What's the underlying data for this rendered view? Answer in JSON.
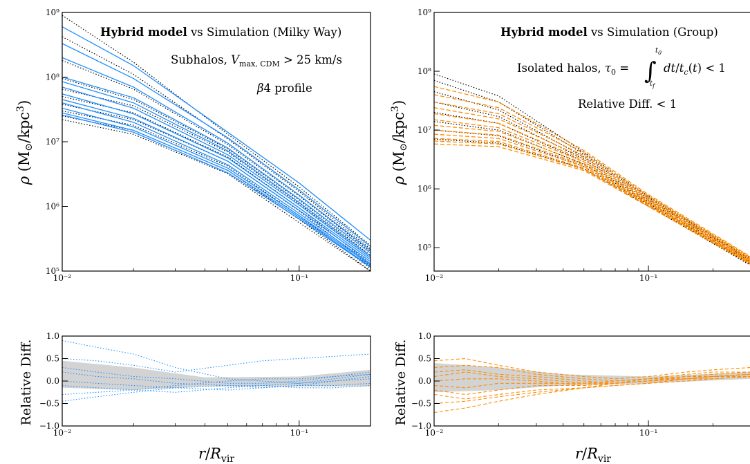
{
  "figure": {
    "xlabel": "r/R_vir",
    "main_ylabel": "ρ (M⊙/kpc³)",
    "diff_ylabel": "Relative Diff."
  },
  "colors": {
    "model_mw": "#1f8fff",
    "model_group": "#ff8c00",
    "simulation": "#000000",
    "band": "#d3d3d3"
  },
  "chart_data": [
    {
      "panel": "left-main",
      "type": "line",
      "xscale": "log",
      "yscale": "log",
      "xlim": [
        0.01,
        0.2
      ],
      "ylim": [
        100000,
        1000000000
      ],
      "xticks": [
        {
          "v": 0.01,
          "label": "10⁻²"
        },
        {
          "v": 0.1,
          "label": "10⁻¹"
        }
      ],
      "yticks": [
        {
          "v": 100000,
          "label": "10⁵"
        },
        {
          "v": 1000000,
          "label": "10⁶"
        },
        {
          "v": 10000000,
          "label": "10⁷"
        },
        {
          "v": 100000000,
          "label": "10⁸"
        },
        {
          "v": 1000000000,
          "label": "10⁹"
        }
      ],
      "title_bold": "Hybrid model",
      "title_rest": " vs Simulation (Milky Way)",
      "annotations": [
        "Subhalos,  V_max,CDM > 25 km/s",
        "β4 profile"
      ],
      "model_style": "solid",
      "x": [
        0.01,
        0.02,
        0.05,
        0.1,
        0.2
      ],
      "model_series": [
        {
          "values": [
            600000000,
            150000000,
            14000000,
            2300000,
            300000
          ]
        },
        {
          "values": [
            330000000,
            95000000,
            11500000,
            1800000,
            240000
          ]
        },
        {
          "values": [
            200000000,
            70000000,
            9500000,
            1500000,
            210000
          ]
        },
        {
          "values": [
            100000000,
            48000000,
            8000000,
            1300000,
            190000
          ]
        },
        {
          "values": [
            85000000,
            40000000,
            7200000,
            1150000,
            170000
          ]
        },
        {
          "values": [
            70000000,
            33000000,
            6300000,
            1050000,
            160000
          ]
        },
        {
          "values": [
            55000000,
            27000000,
            5600000,
            950000,
            150000
          ]
        },
        {
          "values": [
            45000000,
            23000000,
            5000000,
            870000,
            140000
          ]
        },
        {
          "values": [
            40000000,
            20000000,
            4400000,
            780000,
            130000
          ]
        },
        {
          "values": [
            33000000,
            17000000,
            3900000,
            720000,
            125000
          ]
        },
        {
          "values": [
            28000000,
            15000000,
            3600000,
            680000,
            118000
          ]
        },
        {
          "values": [
            26000000,
            14000000,
            3300000,
            640000,
            115000
          ]
        }
      ],
      "sim_series": [
        {
          "values": [
            900000000,
            170000000,
            13000000,
            2000000,
            250000
          ]
        },
        {
          "values": [
            420000000,
            110000000,
            11000000,
            1700000,
            220000
          ]
        },
        {
          "values": [
            180000000,
            65000000,
            9000000,
            1450000,
            200000
          ]
        },
        {
          "values": [
            95000000,
            45000000,
            7700000,
            1250000,
            175000
          ]
        },
        {
          "values": [
            65000000,
            36000000,
            6900000,
            1100000,
            160000
          ]
        },
        {
          "values": [
            50000000,
            28000000,
            5800000,
            950000,
            130000
          ]
        },
        {
          "values": [
            38000000,
            22000000,
            5000000,
            850000,
            120000
          ]
        },
        {
          "values": [
            30000000,
            18000000,
            4200000,
            720000,
            110000
          ]
        },
        {
          "values": [
            25000000,
            15000000,
            3600000,
            630000,
            100000
          ]
        },
        {
          "values": [
            22000000,
            13000000,
            3200000,
            560000,
            100000
          ]
        }
      ]
    },
    {
      "panel": "right-main",
      "type": "line",
      "xscale": "log",
      "yscale": "log",
      "xlim": [
        0.01,
        0.3
      ],
      "ylim": [
        40000,
        1000000000
      ],
      "xticks": [
        {
          "v": 0.01,
          "label": "10⁻²"
        },
        {
          "v": 0.1,
          "label": "10⁻¹"
        }
      ],
      "yticks": [
        {
          "v": 100000,
          "label": "10⁵"
        },
        {
          "v": 1000000,
          "label": "10⁶"
        },
        {
          "v": 10000000,
          "label": "10⁷"
        },
        {
          "v": 100000000,
          "label": "10⁸"
        },
        {
          "v": 1000000000,
          "label": "10⁹"
        }
      ],
      "title_bold": "Hybrid model",
      "title_rest": " vs Simulation (Group)",
      "annotations": [
        "Isolated halos,  τ₀ = ∫ dt/t_c(t) < 1",
        "Relative Diff.  < 1"
      ],
      "model_style": "dashed",
      "x": [
        0.01,
        0.02,
        0.05,
        0.1,
        0.3
      ],
      "model_series": [
        {
          "values": [
            55000000,
            30000000,
            4500000,
            800000,
            70000
          ]
        },
        {
          "values": [
            40000000,
            24000000,
            4100000,
            760000,
            68000
          ]
        },
        {
          "values": [
            30000000,
            19000000,
            3700000,
            720000,
            65000
          ]
        },
        {
          "values": [
            24000000,
            15500000,
            3400000,
            690000,
            63000
          ]
        },
        {
          "values": [
            19000000,
            13000000,
            3100000,
            660000,
            61000
          ]
        },
        {
          "values": [
            15000000,
            11000000,
            2900000,
            630000,
            59000
          ]
        },
        {
          "values": [
            12000000,
            9500000,
            2700000,
            600000,
            57000
          ]
        },
        {
          "values": [
            10000000,
            8200000,
            2550000,
            580000,
            56000
          ]
        },
        {
          "values": [
            8500000,
            7200000,
            2400000,
            560000,
            55000
          ]
        },
        {
          "values": [
            7200000,
            6400000,
            2250000,
            540000,
            54000
          ]
        },
        {
          "values": [
            6500000,
            5800000,
            2150000,
            520000,
            53000
          ]
        },
        {
          "values": [
            5800000,
            5200000,
            2050000,
            500000,
            52000
          ]
        }
      ],
      "sim_series": [
        {
          "values": [
            90000000,
            38000000,
            4200000,
            750000,
            65000
          ]
        },
        {
          "values": [
            70000000,
            30000000,
            3900000,
            720000,
            62000
          ]
        },
        {
          "values": [
            45000000,
            22000000,
            3500000,
            680000,
            60000
          ]
        },
        {
          "values": [
            30000000,
            17000000,
            3200000,
            640000,
            58000
          ]
        },
        {
          "values": [
            20000000,
            13000000,
            2900000,
            600000,
            55000
          ]
        },
        {
          "values": [
            14000000,
            10000000,
            2600000,
            570000,
            53000
          ]
        },
        {
          "values": [
            10000000,
            8000000,
            2400000,
            540000,
            51000
          ]
        },
        {
          "values": [
            7000000,
            6000000,
            2200000,
            510000,
            50000
          ]
        }
      ]
    },
    {
      "panel": "left-diff",
      "type": "line",
      "xscale": "log",
      "yscale": "linear",
      "xlim": [
        0.01,
        0.2
      ],
      "ylim": [
        -1.0,
        1.0
      ],
      "xticks": [
        {
          "v": 0.01,
          "label": "10⁻²"
        },
        {
          "v": 0.1,
          "label": "10⁻¹"
        }
      ],
      "yticks": [
        {
          "v": -1.0,
          "label": "−1.0"
        },
        {
          "v": -0.5,
          "label": "−0.5"
        },
        {
          "v": 0.0,
          "label": "0.0"
        },
        {
          "v": 0.5,
          "label": "0.5"
        },
        {
          "v": 1.0,
          "label": "1.0"
        }
      ],
      "line_style": "dotted",
      "band_x": [
        0.01,
        0.02,
        0.04,
        0.1,
        0.2
      ],
      "band_upper": [
        0.45,
        0.3,
        0.08,
        0.1,
        0.25
      ],
      "band_lower": [
        -0.15,
        -0.2,
        -0.12,
        -0.12,
        -0.12
      ],
      "x": [
        0.01,
        0.014,
        0.02,
        0.03,
        0.05,
        0.07,
        0.1,
        0.14,
        0.2
      ],
      "series": [
        {
          "values": [
            0.9,
            0.75,
            0.6,
            0.3,
            0.05,
            0.0,
            -0.05,
            0.05,
            0.15
          ]
        },
        {
          "values": [
            0.5,
            0.45,
            0.35,
            0.2,
            0.35,
            0.45,
            0.5,
            0.55,
            0.6
          ]
        },
        {
          "values": [
            0.3,
            0.2,
            0.1,
            0.05,
            -0.05,
            -0.05,
            0.0,
            0.1,
            0.2
          ]
        },
        {
          "values": [
            0.2,
            0.1,
            0.05,
            -0.05,
            -0.1,
            -0.15,
            -0.1,
            0.0,
            0.1
          ]
        },
        {
          "values": [
            0.0,
            -0.05,
            -0.1,
            -0.15,
            -0.2,
            -0.15,
            -0.1,
            -0.1,
            -0.05
          ]
        },
        {
          "values": [
            -0.1,
            -0.15,
            -0.2,
            -0.25,
            -0.15,
            -0.1,
            -0.05,
            0.0,
            0.05
          ]
        },
        {
          "values": [
            -0.3,
            -0.25,
            -0.2,
            -0.1,
            0.0,
            0.05,
            0.05,
            0.1,
            0.15
          ]
        },
        {
          "values": [
            -0.45,
            -0.35,
            -0.25,
            -0.15,
            -0.1,
            -0.1,
            -0.15,
            -0.15,
            -0.1
          ]
        }
      ]
    },
    {
      "panel": "right-diff",
      "type": "line",
      "xscale": "log",
      "yscale": "linear",
      "xlim": [
        0.01,
        0.3
      ],
      "ylim": [
        -1.0,
        1.0
      ],
      "xticks": [
        {
          "v": 0.01,
          "label": "10⁻²"
        },
        {
          "v": 0.1,
          "label": "10⁻¹"
        }
      ],
      "yticks": [
        {
          "v": -1.0,
          "label": "−1.0"
        },
        {
          "v": -0.5,
          "label": "−0.5"
        },
        {
          "v": 0.0,
          "label": "0.0"
        },
        {
          "v": 0.5,
          "label": "0.5"
        },
        {
          "v": 1.0,
          "label": "1.0"
        }
      ],
      "line_style": "dashed",
      "band_x": [
        0.01,
        0.02,
        0.04,
        0.1,
        0.3
      ],
      "band_upper": [
        0.4,
        0.3,
        0.15,
        0.1,
        0.2
      ],
      "band_lower": [
        -0.25,
        -0.2,
        -0.1,
        -0.05,
        0.05
      ],
      "x": [
        0.01,
        0.014,
        0.02,
        0.03,
        0.05,
        0.07,
        0.1,
        0.15,
        0.2,
        0.3
      ],
      "series": [
        {
          "values": [
            0.45,
            0.5,
            0.35,
            0.2,
            0.1,
            0.05,
            0.1,
            0.2,
            0.25,
            0.3
          ]
        },
        {
          "values": [
            0.3,
            0.35,
            0.3,
            0.15,
            0.05,
            0.0,
            0.05,
            0.15,
            0.2,
            0.2
          ]
        },
        {
          "values": [
            0.2,
            0.25,
            0.15,
            0.1,
            0.0,
            -0.05,
            0.0,
            0.1,
            0.15,
            0.2
          ]
        },
        {
          "values": [
            0.1,
            0.2,
            0.1,
            0.05,
            -0.05,
            -0.05,
            0.05,
            0.1,
            0.1,
            0.15
          ]
        },
        {
          "values": [
            0.0,
            0.05,
            0.05,
            0.0,
            -0.1,
            -0.05,
            0.0,
            0.05,
            0.1,
            0.1
          ]
        },
        {
          "values": [
            -0.1,
            -0.15,
            -0.05,
            -0.05,
            -0.05,
            0.0,
            0.05,
            0.05,
            0.05,
            0.1
          ]
        },
        {
          "values": [
            -0.2,
            -0.3,
            -0.2,
            -0.1,
            -0.1,
            -0.05,
            0.0,
            0.05,
            0.1,
            0.15
          ]
        },
        {
          "values": [
            -0.3,
            -0.4,
            -0.3,
            -0.2,
            -0.15,
            -0.1,
            -0.05,
            0.0,
            0.05,
            0.1
          ]
        },
        {
          "values": [
            -0.5,
            -0.45,
            -0.35,
            -0.25,
            -0.15,
            -0.05,
            0.0,
            0.05,
            0.1,
            0.15
          ]
        },
        {
          "values": [
            -0.7,
            -0.6,
            -0.45,
            -0.3,
            -0.15,
            -0.1,
            -0.05,
            0.05,
            0.1,
            0.15
          ]
        }
      ]
    }
  ]
}
